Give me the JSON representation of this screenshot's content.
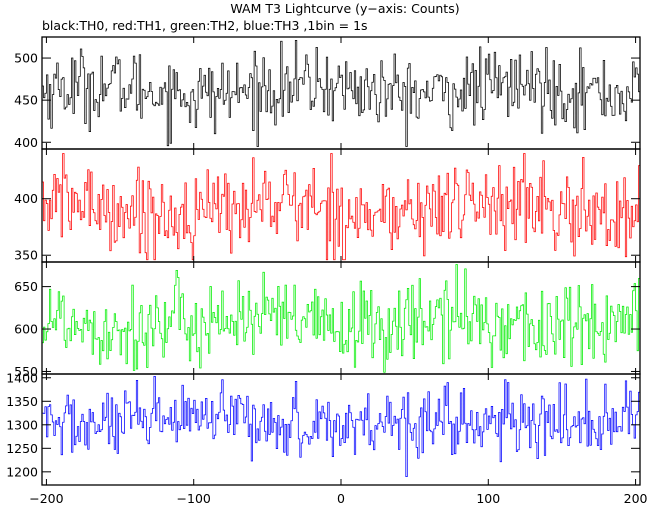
{
  "chart_data": {
    "type": "line",
    "title": "WAM T3 Lightcurve (y−axis: Counts)",
    "subtitle": "black:TH0, red:TH1, green:TH2, blue:TH3 ,1bin = 1s",
    "xlabel": "",
    "ylabel": "",
    "x_range": [
      -203,
      203
    ],
    "x_ticks": [
      -200,
      -100,
      0,
      100,
      200
    ],
    "x_tick_labels": [
      "−200",
      "−100",
      "0",
      "100",
      "200"
    ],
    "grid": false,
    "panels": [
      {
        "name": "TH0",
        "color": "#000000",
        "ylim": [
          392,
          525
        ],
        "yticks": [
          400,
          450,
          500
        ],
        "mean": 462,
        "std": 22,
        "peak_min": 395,
        "peak_max": 521
      },
      {
        "name": "TH1",
        "color": "#ff0000",
        "ylim": [
          344,
          444
        ],
        "yticks": [
          350,
          400
        ],
        "mean": 391,
        "std": 19,
        "peak_min": 346,
        "peak_max": 440
      },
      {
        "name": "TH2",
        "color": "#00ee00",
        "ylim": [
          547,
          679
        ],
        "yticks": [
          550,
          600,
          650
        ],
        "mean": 607,
        "std": 25,
        "peak_min": 549,
        "peak_max": 676
      },
      {
        "name": "TH3",
        "color": "#0000ff",
        "ylim": [
          1172,
          1408
        ],
        "yticks": [
          1200,
          1250,
          1300,
          1350,
          1400
        ],
        "mean": 1305,
        "std": 36,
        "peak_min": 1180,
        "peak_max": 1403
      }
    ]
  }
}
